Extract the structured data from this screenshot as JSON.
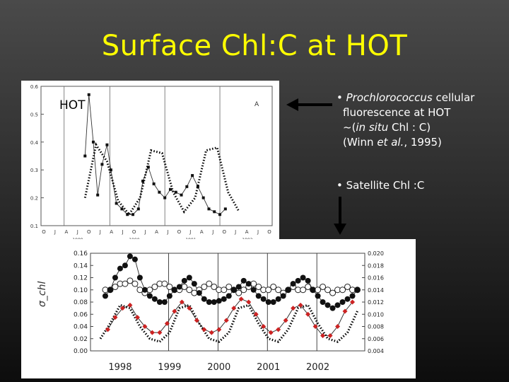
{
  "title": "Surface Chl:C at HOT",
  "top_panel_label": "HOT",
  "annotations": {
    "note1": {
      "bullet": "•",
      "line1_italic": "Prochlorococcus",
      "line1_rest": " cellular",
      "line2": "fluorescence at HOT",
      "line3_pre": "~(",
      "line3_italic": "in situ",
      "line3_post": " Chl : C)",
      "line4_pre": "(Winn ",
      "line4_italic": "et al.",
      "line4_post": ", 1995)"
    },
    "note2": {
      "bullet": "•",
      "text": "Satellite Chl :C"
    }
  },
  "colors": {
    "title": "#ffff00",
    "arrow": "#000000",
    "note_text": "#ffffff",
    "satellite_arrow": "#000000",
    "red_series": "#cc2222"
  },
  "chart_data": [
    {
      "type": "line",
      "panel_letter": "A",
      "yticks": [
        "0.6",
        "0.5",
        "0.4",
        "0.3",
        "0.2",
        "0.1"
      ],
      "ylim": [
        0.1,
        0.6
      ],
      "xticks": [
        "O",
        "J",
        "A",
        "J",
        "O",
        "J",
        "A",
        "J",
        "O",
        "J",
        "A",
        "J",
        "O",
        "J",
        "A",
        "J",
        "O",
        "J",
        "A",
        "J",
        "O"
      ],
      "year_labels": [
        "1989",
        "1990",
        "1991",
        "1992",
        "1993"
      ],
      "series": [
        {
          "style": "solid-squares",
          "x": [
            1990.55,
            1990.62,
            1990.7,
            1990.78,
            1990.86,
            1990.95,
            1991.02,
            1991.12,
            1991.22,
            1991.32,
            1991.42,
            1991.52,
            1991.6,
            1991.7,
            1991.8,
            1991.9,
            1992.0,
            1992.1,
            1992.2,
            1992.3,
            1992.4,
            1992.5,
            1992.6,
            1992.7,
            1992.8,
            1992.9,
            1993.0,
            1993.1
          ],
          "y": [
            0.35,
            0.57,
            0.4,
            0.21,
            0.32,
            0.39,
            0.3,
            0.18,
            0.16,
            0.14,
            0.14,
            0.16,
            0.26,
            0.31,
            0.25,
            0.22,
            0.2,
            0.23,
            0.22,
            0.21,
            0.24,
            0.28,
            0.24,
            0.2,
            0.16,
            0.15,
            0.14,
            0.16
          ]
        },
        {
          "style": "dotted-model",
          "x": [
            1990.55,
            1990.75,
            1990.95,
            1991.15,
            1991.35,
            1991.55,
            1991.75,
            1991.95,
            1992.15,
            1992.35,
            1992.55,
            1992.75,
            1992.95,
            1993.15,
            1993.35
          ],
          "y": [
            0.2,
            0.39,
            0.33,
            0.19,
            0.14,
            0.2,
            0.37,
            0.36,
            0.22,
            0.15,
            0.2,
            0.37,
            0.38,
            0.22,
            0.15
          ]
        }
      ]
    },
    {
      "type": "line",
      "ylabel": "σ_chl",
      "yticks_left": [
        "0.16",
        "0.14",
        "0.12",
        "0.10",
        "0.08",
        "0.06",
        "0.04",
        "0.02",
        "0.00"
      ],
      "ylim_left": [
        0.0,
        0.16
      ],
      "yticks_right": [
        "0.020",
        "0.018",
        "0.016",
        "0.014",
        "0.012",
        "0.010",
        "0.008",
        "0.006",
        "0.004"
      ],
      "ylim_right": [
        0.004,
        0.02
      ],
      "xticks": [
        "1998",
        "1999",
        "2000",
        "2001",
        "2002"
      ],
      "xlim": [
        1997.4,
        2002.95
      ],
      "series": [
        {
          "style": "filled-circles",
          "x": [
            1997.7,
            1997.8,
            1997.9,
            1998.0,
            1998.1,
            1998.2,
            1998.3,
            1998.4,
            1998.5,
            1998.6,
            1998.7,
            1998.8,
            1998.9,
            1999.0,
            1999.1,
            1999.2,
            1999.3,
            1999.4,
            1999.5,
            1999.6,
            1999.7,
            1999.8,
            1999.9,
            2000.0,
            2000.1,
            2000.2,
            2000.3,
            2000.4,
            2000.5,
            2000.6,
            2000.7,
            2000.8,
            2000.9,
            2001.0,
            2001.1,
            2001.2,
            2001.3,
            2001.4,
            2001.5,
            2001.6,
            2001.7,
            2001.8,
            2001.9,
            2002.0,
            2002.1,
            2002.2,
            2002.3,
            2002.4,
            2002.5,
            2002.6,
            2002.7,
            2002.8
          ],
          "y": [
            0.09,
            0.1,
            0.12,
            0.135,
            0.14,
            0.155,
            0.15,
            0.12,
            0.1,
            0.09,
            0.085,
            0.08,
            0.08,
            0.09,
            0.1,
            0.105,
            0.115,
            0.12,
            0.11,
            0.095,
            0.085,
            0.08,
            0.08,
            0.082,
            0.085,
            0.09,
            0.1,
            0.105,
            0.115,
            0.11,
            0.1,
            0.09,
            0.085,
            0.08,
            0.08,
            0.085,
            0.09,
            0.1,
            0.11,
            0.115,
            0.12,
            0.115,
            0.1,
            0.09,
            0.08,
            0.075,
            0.07,
            0.075,
            0.08,
            0.085,
            0.09,
            0.1
          ]
        },
        {
          "style": "open-circles",
          "x": [
            1997.7,
            1997.8,
            1997.9,
            1998.0,
            1998.1,
            1998.2,
            1998.3,
            1998.4,
            1998.5,
            1998.6,
            1998.7,
            1998.8,
            1998.9,
            1999.0,
            1999.1,
            1999.2,
            1999.3,
            1999.4,
            1999.5,
            1999.6,
            1999.7,
            1999.8,
            1999.9,
            2000.0,
            2000.1,
            2000.2,
            2000.3,
            2000.4,
            2000.5,
            2000.6,
            2000.7,
            2000.8,
            2000.9,
            2001.0,
            2001.1,
            2001.2,
            2001.3,
            2001.4,
            2001.5,
            2001.6,
            2001.7,
            2001.8,
            2001.9,
            2002.0,
            2002.1,
            2002.2,
            2002.3,
            2002.4,
            2002.5,
            2002.6,
            2002.7,
            2002.8
          ],
          "y": [
            0.1,
            0.1,
            0.105,
            0.11,
            0.11,
            0.115,
            0.11,
            0.1,
            0.095,
            0.1,
            0.105,
            0.11,
            0.11,
            0.105,
            0.1,
            0.1,
            0.105,
            0.1,
            0.095,
            0.1,
            0.105,
            0.11,
            0.105,
            0.1,
            0.1,
            0.105,
            0.1,
            0.095,
            0.1,
            0.105,
            0.11,
            0.105,
            0.1,
            0.1,
            0.105,
            0.1,
            0.095,
            0.1,
            0.105,
            0.1,
            0.1,
            0.105,
            0.1,
            0.1,
            0.105,
            0.1,
            0.095,
            0.1,
            0.1,
            0.105,
            0.1,
            0.1
          ]
        },
        {
          "style": "red-diamonds",
          "x": [
            1997.75,
            1997.9,
            1998.05,
            1998.2,
            1998.35,
            1998.5,
            1998.65,
            1998.8,
            1998.95,
            1999.1,
            1999.25,
            1999.4,
            1999.55,
            1999.7,
            1999.85,
            2000.0,
            2000.15,
            2000.3,
            2000.45,
            2000.6,
            2000.75,
            2000.9,
            2001.05,
            2001.2,
            2001.35,
            2001.5,
            2001.65,
            2001.8,
            2001.95,
            2002.1,
            2002.25,
            2002.4,
            2002.55,
            2002.7
          ],
          "y": [
            0.035,
            0.055,
            0.07,
            0.075,
            0.055,
            0.04,
            0.03,
            0.03,
            0.045,
            0.065,
            0.08,
            0.07,
            0.05,
            0.035,
            0.03,
            0.035,
            0.05,
            0.07,
            0.085,
            0.08,
            0.06,
            0.04,
            0.03,
            0.035,
            0.05,
            0.07,
            0.075,
            0.06,
            0.04,
            0.025,
            0.025,
            0.04,
            0.065,
            0.08
          ]
        },
        {
          "style": "dotted-model",
          "x": [
            1997.6,
            1997.8,
            1998.0,
            1998.2,
            1998.4,
            1998.6,
            1998.8,
            1999.0,
            1999.2,
            1999.4,
            1999.6,
            1999.8,
            2000.0,
            2000.2,
            2000.4,
            2000.6,
            2000.8,
            2001.0,
            2001.2,
            2001.4,
            2001.6,
            2001.8,
            2002.0,
            2002.2,
            2002.4,
            2002.6,
            2002.8
          ],
          "y": [
            0.02,
            0.045,
            0.075,
            0.07,
            0.04,
            0.02,
            0.015,
            0.03,
            0.07,
            0.075,
            0.045,
            0.02,
            0.015,
            0.03,
            0.07,
            0.075,
            0.045,
            0.02,
            0.015,
            0.035,
            0.07,
            0.075,
            0.045,
            0.02,
            0.015,
            0.03,
            0.065
          ]
        }
      ]
    }
  ]
}
